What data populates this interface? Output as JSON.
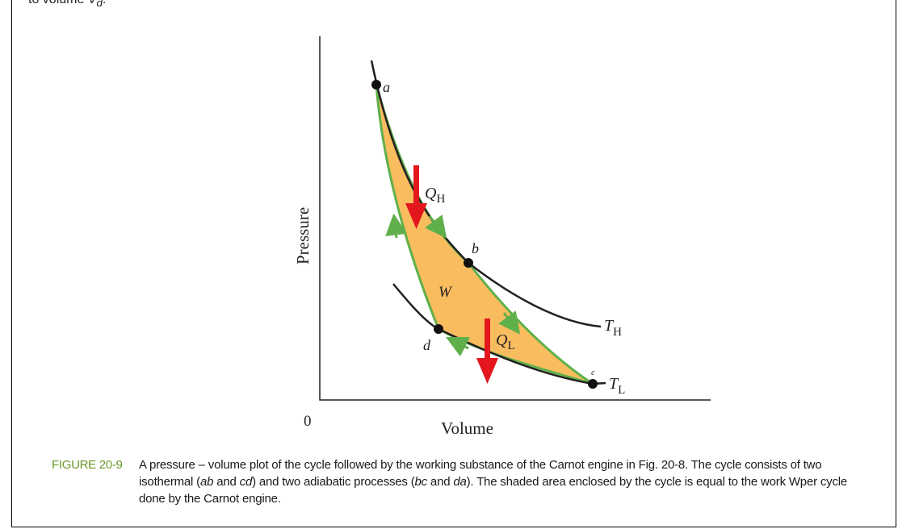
{
  "top_fragment": {
    "text": "to volume ",
    "var": "V",
    "sub": "d",
    "tail": "."
  },
  "diagram": {
    "y_axis_label": "Pressure",
    "x_axis_label": "Volume",
    "origin_label": "0",
    "points": {
      "a": "a",
      "b": "b",
      "c": "c",
      "d": "d"
    },
    "heat_in": {
      "symbol": "Q",
      "sub": "H"
    },
    "heat_out": {
      "symbol": "Q",
      "sub": "L"
    },
    "work": "W",
    "isotherm_high": {
      "symbol": "T",
      "sub": "H"
    },
    "isotherm_low": {
      "symbol": "T",
      "sub": "L"
    },
    "colors": {
      "cycle_fill": "#f9bd5f",
      "cycle_edge": "#5fb04a",
      "isotherm": "#231f20",
      "heat_arrow": "#e3171d"
    }
  },
  "caption": {
    "label": "FIGURE 20-9",
    "part1": "A pressure – volume plot of the cycle followed by the working substance of the Carnot engine in Fig. 20-8. The cycle consists of two isothermal (",
    "ab": "ab",
    "and1": " and ",
    "cd": "cd",
    "part2": ") and two adiabatic processes (",
    "bc": "bc",
    "and2": " and ",
    "da": "da",
    "part3": "). The shaded area enclosed by the cycle is equal to the work Wper cycle done by the Carnot engine.",
    "label_color": "#6a9a2a"
  }
}
